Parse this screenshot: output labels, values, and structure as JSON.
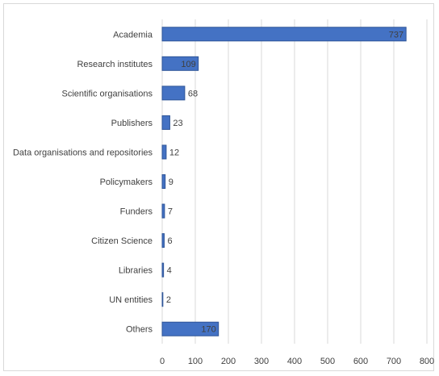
{
  "chart_data": {
    "type": "bar",
    "orientation": "horizontal",
    "categories": [
      "Academia",
      "Research institutes",
      "Scientific organisations",
      "Publishers",
      "Data organisations and repositories",
      "Policymakers",
      "Funders",
      "Citizen Science",
      "Libraries",
      "UN entities",
      "Others"
    ],
    "values": [
      737,
      109,
      68,
      23,
      12,
      9,
      7,
      6,
      4,
      2,
      170
    ],
    "data_labels": [
      "737",
      "109",
      "68",
      "23",
      "12",
      "9",
      "7",
      "6",
      "4",
      "2",
      "170"
    ],
    "x_ticks": [
      "0",
      "100",
      "200",
      "300",
      "400",
      "500",
      "600",
      "700",
      "800"
    ],
    "xlim": [
      0,
      800
    ],
    "grid": true,
    "title": "",
    "xlabel": "",
    "ylabel": "",
    "colors": {
      "bar": "#4472c4",
      "bar_edge": "#2f5597",
      "grid": "#d9d9d9",
      "text": "#404040"
    }
  }
}
